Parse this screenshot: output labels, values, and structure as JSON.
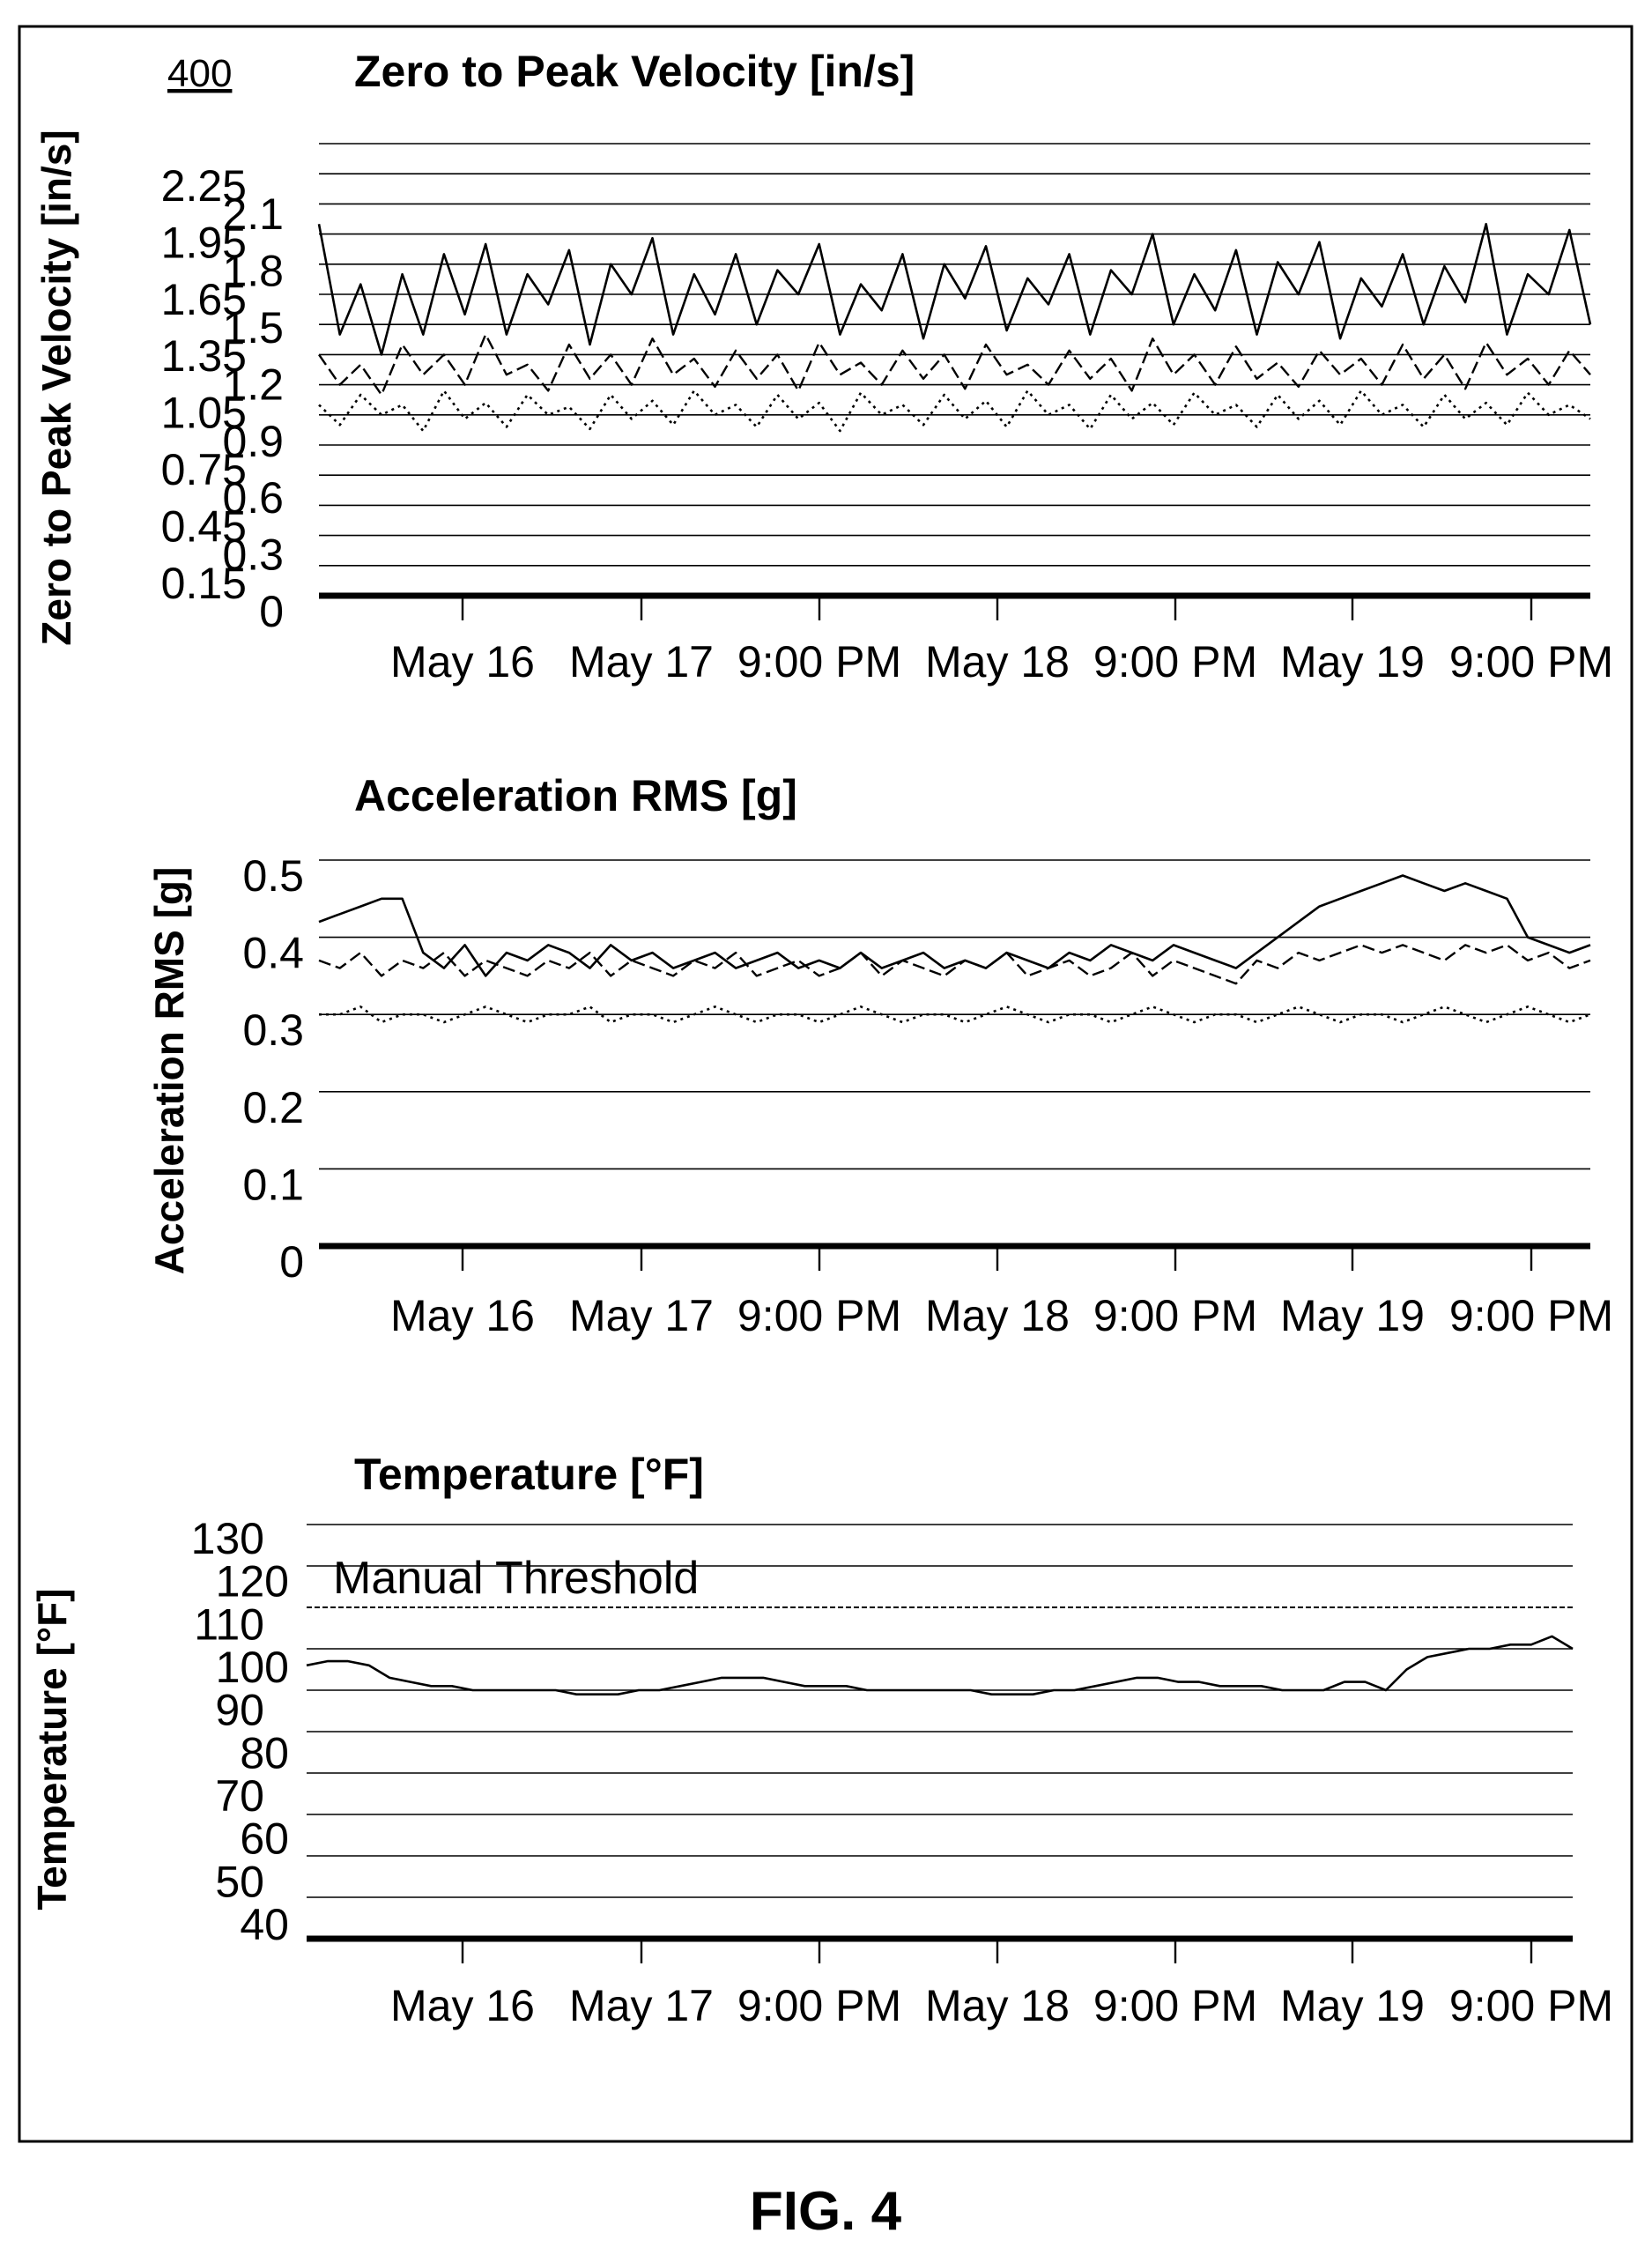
{
  "figure": {
    "ref_number": "400",
    "caption": "FIG. 4"
  },
  "chart_data": [
    {
      "type": "line",
      "title": "Zero to Peak Velocity [in/s]",
      "ylabel": "Zero to Peak Velocity [in/s]",
      "xlabel": "",
      "ylim": [
        0,
        2.25
      ],
      "x_tick_labels": [
        "May 16",
        "May 17",
        "9:00 PM",
        "May 18",
        "9:00 PM",
        "May 19",
        "9:00 PM"
      ],
      "y_tick_labels": [
        "2.25",
        "2.1",
        "1.95",
        "1.8",
        "1.65",
        "1.5",
        "1.35",
        "1.2",
        "1.05",
        "0.9",
        "0.75",
        "0.6",
        "0.45",
        "0.3",
        "0.15",
        "0"
      ],
      "gridlines": [
        0.15,
        0.3,
        0.45,
        0.6,
        0.75,
        0.9,
        1.05,
        1.2,
        1.35,
        1.5,
        1.65,
        1.8,
        1.95,
        2.1,
        2.25
      ],
      "grid": true,
      "series": [
        {
          "style": "solid",
          "values": [
            1.85,
            1.3,
            1.55,
            1.2,
            1.6,
            1.3,
            1.7,
            1.4,
            1.75,
            1.3,
            1.6,
            1.45,
            1.72,
            1.25,
            1.65,
            1.5,
            1.78,
            1.3,
            1.6,
            1.4,
            1.7,
            1.35,
            1.62,
            1.5,
            1.75,
            1.3,
            1.55,
            1.42,
            1.7,
            1.28,
            1.65,
            1.48,
            1.74,
            1.32,
            1.58,
            1.45,
            1.7,
            1.3,
            1.62,
            1.5,
            1.8,
            1.35,
            1.6,
            1.42,
            1.72,
            1.3,
            1.66,
            1.5,
            1.76,
            1.28,
            1.58,
            1.44,
            1.7,
            1.35,
            1.64,
            1.46,
            1.85,
            1.3,
            1.6,
            1.5,
            1.82,
            1.35
          ]
        },
        {
          "style": "dashed",
          "values": [
            1.2,
            1.05,
            1.15,
            1.0,
            1.25,
            1.1,
            1.2,
            1.05,
            1.3,
            1.1,
            1.15,
            1.02,
            1.25,
            1.08,
            1.2,
            1.05,
            1.28,
            1.1,
            1.18,
            1.04,
            1.22,
            1.08,
            1.2,
            1.02,
            1.26,
            1.1,
            1.16,
            1.05,
            1.22,
            1.08,
            1.2,
            1.03,
            1.25,
            1.1,
            1.15,
            1.05,
            1.22,
            1.08,
            1.18,
            1.02,
            1.28,
            1.1,
            1.2,
            1.05,
            1.24,
            1.08,
            1.16,
            1.04,
            1.22,
            1.1,
            1.18,
            1.05,
            1.25,
            1.08,
            1.2,
            1.03,
            1.26,
            1.1,
            1.18,
            1.05,
            1.22,
            1.1
          ]
        },
        {
          "style": "dotted",
          "values": [
            0.95,
            0.85,
            1.0,
            0.9,
            0.95,
            0.82,
            1.02,
            0.88,
            0.96,
            0.84,
            1.0,
            0.9,
            0.94,
            0.83,
            1.0,
            0.88,
            0.97,
            0.85,
            1.02,
            0.9,
            0.95,
            0.84,
            1.0,
            0.88,
            0.96,
            0.82,
            1.01,
            0.9,
            0.95,
            0.85,
            1.0,
            0.88,
            0.97,
            0.84,
            1.02,
            0.9,
            0.95,
            0.83,
            1.0,
            0.88,
            0.96,
            0.85,
            1.01,
            0.9,
            0.95,
            0.84,
            1.0,
            0.88,
            0.97,
            0.85,
            1.02,
            0.9,
            0.95,
            0.84,
            1.0,
            0.88,
            0.96,
            0.85,
            1.01,
            0.9,
            0.95,
            0.88
          ]
        }
      ]
    },
    {
      "type": "line",
      "title": "Acceleration RMS [g]",
      "ylabel": "Acceleration RMS [g]",
      "xlabel": "",
      "ylim": [
        0,
        0.5
      ],
      "x_tick_labels": [
        "May 16",
        "May 17",
        "9:00 PM",
        "May 18",
        "9:00 PM",
        "May 19",
        "9:00 PM"
      ],
      "y_tick_labels": [
        "0.5",
        "0.4",
        "0.3",
        "0.2",
        "0.1",
        "0"
      ],
      "gridlines": [
        0.1,
        0.2,
        0.3,
        0.4,
        0.5
      ],
      "grid": true,
      "series": [
        {
          "style": "solid",
          "values": [
            0.42,
            0.43,
            0.44,
            0.45,
            0.45,
            0.38,
            0.36,
            0.39,
            0.35,
            0.38,
            0.37,
            0.39,
            0.38,
            0.36,
            0.39,
            0.37,
            0.38,
            0.36,
            0.37,
            0.38,
            0.36,
            0.37,
            0.38,
            0.36,
            0.37,
            0.36,
            0.38,
            0.36,
            0.37,
            0.38,
            0.36,
            0.37,
            0.36,
            0.38,
            0.37,
            0.36,
            0.38,
            0.37,
            0.39,
            0.38,
            0.37,
            0.39,
            0.38,
            0.37,
            0.36,
            0.38,
            0.4,
            0.42,
            0.44,
            0.45,
            0.46,
            0.47,
            0.48,
            0.47,
            0.46,
            0.47,
            0.46,
            0.45,
            0.4,
            0.39,
            0.38,
            0.39
          ]
        },
        {
          "style": "dashed",
          "values": [
            0.37,
            0.36,
            0.38,
            0.35,
            0.37,
            0.36,
            0.38,
            0.35,
            0.37,
            0.36,
            0.35,
            0.37,
            0.36,
            0.38,
            0.35,
            0.37,
            0.36,
            0.35,
            0.37,
            0.36,
            0.38,
            0.35,
            0.36,
            0.37,
            0.35,
            0.36,
            0.38,
            0.35,
            0.37,
            0.36,
            0.35,
            0.37,
            0.36,
            0.38,
            0.35,
            0.36,
            0.37,
            0.35,
            0.36,
            0.38,
            0.35,
            0.37,
            0.36,
            0.35,
            0.34,
            0.37,
            0.36,
            0.38,
            0.37,
            0.38,
            0.39,
            0.38,
            0.39,
            0.38,
            0.37,
            0.39,
            0.38,
            0.39,
            0.37,
            0.38,
            0.36,
            0.37
          ]
        },
        {
          "style": "dotted",
          "values": [
            0.3,
            0.3,
            0.31,
            0.29,
            0.3,
            0.3,
            0.29,
            0.3,
            0.31,
            0.3,
            0.29,
            0.3,
            0.3,
            0.31,
            0.29,
            0.3,
            0.3,
            0.29,
            0.3,
            0.31,
            0.3,
            0.29,
            0.3,
            0.3,
            0.29,
            0.3,
            0.31,
            0.3,
            0.29,
            0.3,
            0.3,
            0.29,
            0.3,
            0.31,
            0.3,
            0.29,
            0.3,
            0.3,
            0.29,
            0.3,
            0.31,
            0.3,
            0.29,
            0.3,
            0.3,
            0.29,
            0.3,
            0.31,
            0.3,
            0.29,
            0.3,
            0.3,
            0.29,
            0.3,
            0.31,
            0.3,
            0.29,
            0.3,
            0.31,
            0.3,
            0.29,
            0.3
          ]
        }
      ]
    },
    {
      "type": "line",
      "title": "Temperature [°F]",
      "ylabel": "Temperature [°F]",
      "xlabel": "",
      "ylim": [
        30,
        130
      ],
      "x_tick_labels": [
        "May 16",
        "May 17",
        "9:00 PM",
        "May 18",
        "9:00 PM",
        "May 19",
        "9:00 PM"
      ],
      "y_tick_labels": [
        "130",
        "120",
        "110",
        "100",
        "90",
        "80",
        "70",
        "60",
        "50",
        "40"
      ],
      "gridlines": [
        40,
        50,
        60,
        70,
        80,
        90,
        100,
        120,
        130
      ],
      "grid": true,
      "threshold": {
        "label": "Manual Threshold",
        "value": 110
      },
      "series": [
        {
          "style": "solid",
          "values": [
            96,
            97,
            97,
            96,
            93,
            92,
            91,
            91,
            90,
            90,
            90,
            90,
            90,
            89,
            89,
            89,
            90,
            90,
            91,
            92,
            93,
            93,
            93,
            92,
            91,
            91,
            91,
            90,
            90,
            90,
            90,
            90,
            90,
            89,
            89,
            89,
            90,
            90,
            91,
            92,
            93,
            93,
            92,
            92,
            91,
            91,
            91,
            90,
            90,
            90,
            92,
            92,
            90,
            95,
            98,
            99,
            100,
            100,
            101,
            101,
            103,
            100
          ]
        }
      ]
    }
  ]
}
